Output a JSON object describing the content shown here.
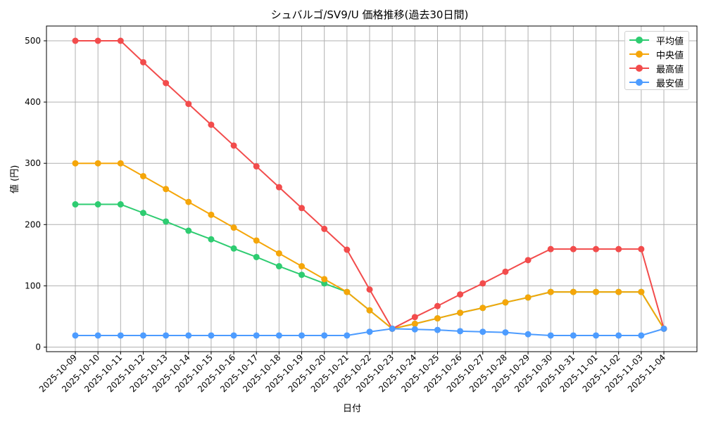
{
  "chart_data": {
    "type": "line",
    "title": "シュバルゴ/SV9/U 価格推移(過去30日間)",
    "xlabel": "日付",
    "ylabel": "値 (円)",
    "ylim": [
      -5,
      525
    ],
    "yticks": [
      0,
      100,
      200,
      300,
      400,
      500
    ],
    "grid": true,
    "legend_position": "upper right",
    "categories": [
      "2025-10-09",
      "2025-10-10",
      "2025-10-11",
      "2025-10-12",
      "2025-10-13",
      "2025-10-14",
      "2025-10-15",
      "2025-10-16",
      "2025-10-17",
      "2025-10-18",
      "2025-10-19",
      "2025-10-20",
      "2025-10-21",
      "2025-10-22",
      "2025-10-23",
      "2025-10-24",
      "2025-10-25",
      "2025-10-26",
      "2025-10-27",
      "2025-10-28",
      "2025-10-29",
      "2025-10-30",
      "2025-10-31",
      "2025-11-01",
      "2025-11-02",
      "2025-11-03",
      "2025-11-04"
    ],
    "series": [
      {
        "name": "平均値",
        "color": "#2ecc71",
        "values": [
          233,
          233,
          233,
          219,
          205,
          190,
          176,
          161,
          147,
          132,
          118,
          104,
          90,
          60,
          30,
          38,
          47,
          56,
          64,
          73,
          81,
          90,
          90,
          90,
          90,
          90,
          30
        ]
      },
      {
        "name": "中央値",
        "color": "#f5a60a",
        "values": [
          300,
          300,
          300,
          279,
          258,
          237,
          216,
          195,
          174,
          153,
          132,
          111,
          90,
          60,
          30,
          38,
          47,
          56,
          64,
          73,
          81,
          90,
          90,
          90,
          90,
          90,
          30
        ]
      },
      {
        "name": "最高値",
        "color": "#f24c4c",
        "values": [
          500,
          500,
          500,
          465,
          431,
          397,
          363,
          329,
          295,
          261,
          227,
          193,
          159,
          94,
          30,
          49,
          67,
          86,
          104,
          123,
          142,
          160,
          160,
          160,
          160,
          160,
          30
        ]
      },
      {
        "name": "最安値",
        "color": "#4d9cff",
        "values": [
          19,
          19,
          19,
          19,
          19,
          19,
          19,
          19,
          19,
          19,
          19,
          19,
          19,
          25,
          30,
          29,
          28,
          26,
          25,
          24,
          21,
          19,
          19,
          19,
          19,
          19,
          30
        ]
      }
    ]
  }
}
